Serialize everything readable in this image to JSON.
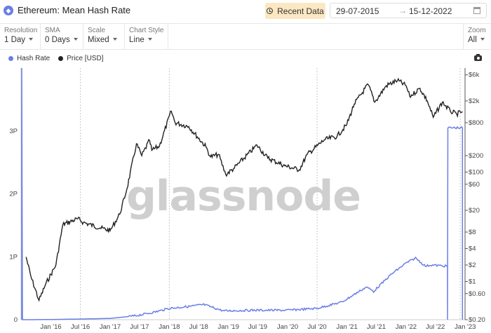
{
  "header": {
    "title": "Ethereum: Mean Hash Rate",
    "recent_label": "Recent Data",
    "date_start": "29-07-2015",
    "date_end": "15-12-2022"
  },
  "controls": {
    "resolution": {
      "label": "Resolution",
      "value": "1 Day"
    },
    "sma": {
      "label": "SMA",
      "value": "0 Days"
    },
    "scale": {
      "label": "Scale",
      "value": "Mixed"
    },
    "chart_style": {
      "label": "Chart Style",
      "value": "Line"
    },
    "zoom": {
      "label": "Zoom",
      "value": "All"
    }
  },
  "watermark": "glassnode",
  "chart_data": {
    "type": "line",
    "legend_placement": "top-left",
    "x_ticks": [
      "Jan '16",
      "Jul '16",
      "Jan '17",
      "Jul '17",
      "Jan '18",
      "Jul '18",
      "Jan '19",
      "Jul '19",
      "Jan '20",
      "Jul '20",
      "Jan '21",
      "Jul '21",
      "Jan '22",
      "Jul '22",
      "Jan '23"
    ],
    "left_axis": {
      "ticks": [
        "0",
        "1P",
        "2P",
        "3P"
      ],
      "range": [
        0,
        4.0
      ],
      "unit": "PH/s"
    },
    "right_axis": {
      "scale": "log",
      "ticks": [
        "$0.20",
        "$0.60",
        "$1",
        "$2",
        "$4",
        "$8",
        "$20",
        "$60",
        "$100",
        "$200",
        "$800",
        "$2k",
        "$6k"
      ],
      "range": [
        0.2,
        8000
      ]
    },
    "series": [
      {
        "name": "Hash Rate",
        "color": "#6a7de6",
        "axis": "left",
        "x": [
          "2015-07-30",
          "2015-09-01",
          "2016-01-01",
          "2016-07-01",
          "2017-01-01",
          "2017-06-01",
          "2017-10-01",
          "2018-01-01",
          "2018-05-01",
          "2018-08-01",
          "2018-12-01",
          "2019-06-01",
          "2020-01-01",
          "2020-07-01",
          "2020-12-01",
          "2021-05-01",
          "2021-06-15",
          "2021-10-01",
          "2022-01-01",
          "2022-03-01",
          "2022-05-01",
          "2022-06-01",
          "2022-09-14",
          "2022-09-16",
          "2022-12-15"
        ],
        "values": [
          0.0,
          0.0,
          0.003,
          0.01,
          0.02,
          0.06,
          0.12,
          0.18,
          0.21,
          0.24,
          0.14,
          0.15,
          0.15,
          0.18,
          0.28,
          0.52,
          0.45,
          0.72,
          0.9,
          0.98,
          0.85,
          0.87,
          0.85,
          3.05,
          3.05
        ]
      },
      {
        "name": "Price [USD]",
        "color": "#222222",
        "axis": "right",
        "x": [
          "2015-08-01",
          "2015-09-01",
          "2015-10-20",
          "2015-12-01",
          "2016-02-01",
          "2016-03-15",
          "2016-06-15",
          "2016-07-20",
          "2016-11-01",
          "2017-01-01",
          "2017-03-01",
          "2017-04-15",
          "2017-06-12",
          "2017-07-15",
          "2017-09-01",
          "2017-09-15",
          "2017-11-01",
          "2018-01-13",
          "2018-02-06",
          "2018-05-01",
          "2018-08-15",
          "2018-09-12",
          "2018-11-01",
          "2018-12-15",
          "2019-02-01",
          "2019-06-26",
          "2019-09-01",
          "2019-12-15",
          "2020-03-13",
          "2020-05-01",
          "2020-08-15",
          "2020-11-01",
          "2021-01-01",
          "2021-02-15",
          "2021-05-12",
          "2021-06-22",
          "2021-09-01",
          "2021-11-09",
          "2022-01-01",
          "2022-01-24",
          "2022-03-28",
          "2022-05-12",
          "2022-06-18",
          "2022-08-13",
          "2022-10-01",
          "2022-11-09",
          "2022-12-15"
        ],
        "values": [
          2.8,
          1.2,
          0.45,
          0.9,
          2.0,
          11,
          14,
          12,
          9.5,
          8.5,
          17,
          50,
          330,
          200,
          380,
          250,
          300,
          1300,
          800,
          680,
          290,
          190,
          210,
          90,
          115,
          310,
          180,
          130,
          110,
          210,
          390,
          450,
          750,
          1750,
          4000,
          1900,
          3800,
          4750,
          3800,
          2400,
          3400,
          2000,
          1000,
          1900,
          1300,
          1150,
          1280
        ]
      }
    ]
  }
}
